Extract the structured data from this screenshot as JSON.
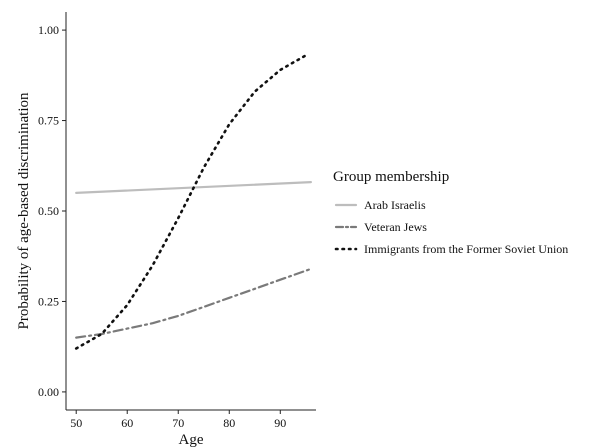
{
  "chart_data": {
    "type": "line",
    "title": "",
    "xlabel": "Age",
    "ylabel": "Probability of age-based discrimination",
    "xlim": [
      48,
      97
    ],
    "ylim": [
      -0.05,
      1.05
    ],
    "xticks": [
      50,
      60,
      70,
      80,
      90
    ],
    "yticks": [
      0.0,
      0.25,
      0.5,
      0.75,
      1.0
    ],
    "ytick_labels": [
      "0.00",
      "0.25",
      "0.50",
      "0.75",
      "1.00"
    ],
    "grid": false,
    "legend": {
      "title": "Group membership",
      "position": "right"
    },
    "series": [
      {
        "name": "Arab Israelis",
        "color": "#bdbdbd",
        "linestyle": "solid",
        "x": [
          50,
          96
        ],
        "y": [
          0.55,
          0.58
        ]
      },
      {
        "name": "Veteran Jews",
        "color": "#7a7a7a",
        "linestyle": "dashdot",
        "x": [
          50,
          55,
          60,
          65,
          70,
          75,
          80,
          85,
          90,
          96
        ],
        "y": [
          0.15,
          0.16,
          0.175,
          0.19,
          0.21,
          0.235,
          0.26,
          0.285,
          0.31,
          0.34
        ]
      },
      {
        "name": "Immigrants from the Former Soviet Union",
        "color": "#111111",
        "linestyle": "dotted",
        "x": [
          50,
          55,
          60,
          65,
          70,
          75,
          80,
          85,
          90,
          95
        ],
        "y": [
          0.12,
          0.16,
          0.24,
          0.35,
          0.48,
          0.62,
          0.74,
          0.83,
          0.89,
          0.93
        ]
      }
    ]
  }
}
